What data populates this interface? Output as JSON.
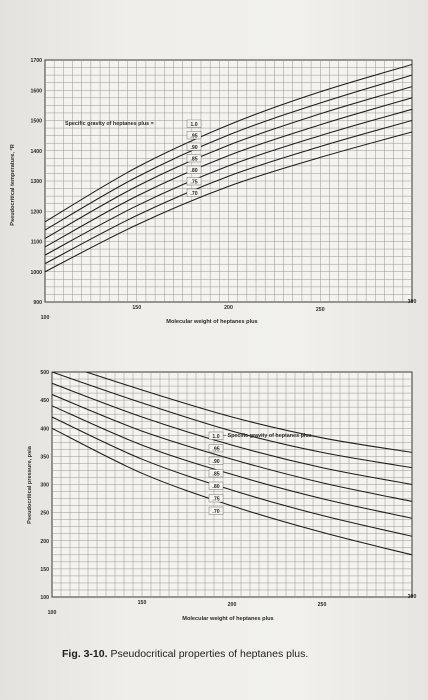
{
  "figure": {
    "number": "Fig. 3-10.",
    "text": "Pseudocritical properties of heptanes plus."
  },
  "chart_data": [
    {
      "type": "line",
      "title": "",
      "xlabel": "Molecular weight of heptanes plus",
      "ylabel": "Pseudocritical temperature, °R",
      "xlim": [
        100,
        300
      ],
      "ylim": [
        900,
        1700
      ],
      "xticks": [
        100,
        150,
        200,
        250,
        300
      ],
      "yticks": [
        900,
        1000,
        1100,
        1200,
        1300,
        1400,
        1500,
        1600,
        1700
      ],
      "grid": true,
      "annotation": "Specific gravity of heptanes plus",
      "series": [
        {
          "name": "1.0",
          "x": [
            100,
            150,
            200,
            250,
            300
          ],
          "y": [
            1165,
            1345,
            1485,
            1595,
            1685
          ]
        },
        {
          "name": ".95",
          "x": [
            100,
            150,
            200,
            250,
            300
          ],
          "y": [
            1138,
            1313,
            1452,
            1558,
            1650
          ]
        },
        {
          "name": ".90",
          "x": [
            100,
            150,
            200,
            250,
            300
          ],
          "y": [
            1110,
            1282,
            1418,
            1522,
            1612
          ]
        },
        {
          "name": ".85",
          "x": [
            100,
            150,
            200,
            250,
            300
          ],
          "y": [
            1082,
            1250,
            1384,
            1486,
            1575
          ]
        },
        {
          "name": ".80",
          "x": [
            100,
            150,
            200,
            250,
            300
          ],
          "y": [
            1055,
            1218,
            1350,
            1450,
            1537
          ]
        },
        {
          "name": ".75",
          "x": [
            100,
            150,
            200,
            250,
            300
          ],
          "y": [
            1027,
            1186,
            1316,
            1414,
            1500
          ]
        },
        {
          "name": ".70",
          "x": [
            100,
            150,
            200,
            250,
            300
          ],
          "y": [
            1000,
            1155,
            1282,
            1378,
            1462
          ]
        }
      ]
    },
    {
      "type": "line",
      "title": "",
      "xlabel": "Molecular weight of heptanes plus",
      "ylabel": "Pseudocritical pressure, psia",
      "xlim": [
        100,
        300
      ],
      "ylim": [
        100,
        500
      ],
      "xticks": [
        100,
        150,
        200,
        250,
        300
      ],
      "yticks": [
        100,
        150,
        200,
        250,
        300,
        350,
        400,
        450,
        500
      ],
      "grid": true,
      "annotation": "Specific gravity of heptanes plus",
      "series": [
        {
          "name": "1.0",
          "x": [
            100,
            150,
            200,
            250,
            300
          ],
          "y": [
            520,
            468,
            420,
            383,
            357
          ]
        },
        {
          "name": ".95",
          "x": [
            100,
            150,
            200,
            250,
            300
          ],
          "y": [
            500,
            445,
            395,
            357,
            330
          ]
        },
        {
          "name": ".90",
          "x": [
            100,
            150,
            200,
            250,
            300
          ],
          "y": [
            480,
            420,
            370,
            330,
            300
          ]
        },
        {
          "name": ".85",
          "x": [
            100,
            150,
            200,
            250,
            300
          ],
          "y": [
            460,
            395,
            345,
            303,
            270
          ]
        },
        {
          "name": ".80",
          "x": [
            100,
            150,
            200,
            250,
            300
          ],
          "y": [
            440,
            370,
            318,
            275,
            240
          ]
        },
        {
          "name": ".75",
          "x": [
            100,
            150,
            200,
            250,
            300
          ],
          "y": [
            420,
            345,
            290,
            245,
            208
          ]
        },
        {
          "name": ".70",
          "x": [
            100,
            150,
            200,
            250,
            300
          ],
          "y": [
            400,
            320,
            262,
            215,
            175
          ]
        }
      ]
    }
  ]
}
